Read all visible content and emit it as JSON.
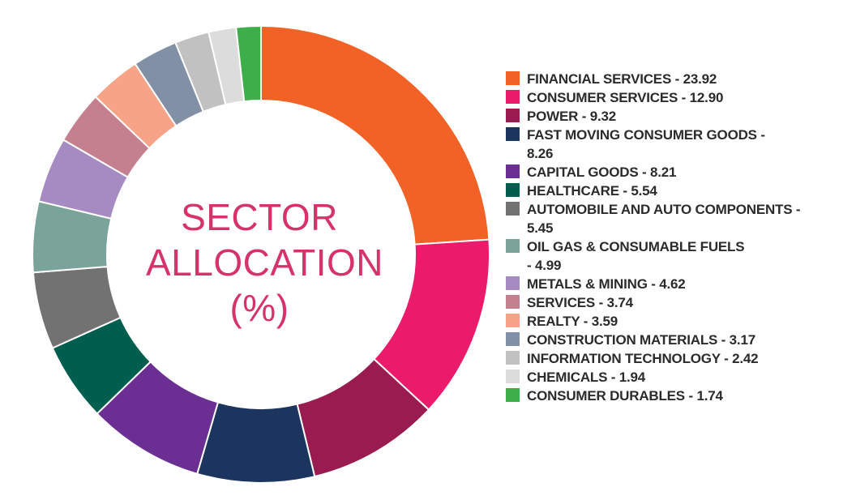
{
  "chart_data": {
    "type": "pie",
    "title_lines": [
      "SECTOR",
      "ALLOCATION",
      "(%)"
    ],
    "donut": true,
    "legend_position": "right",
    "slices": [
      {
        "label": "FINANCIAL SERVICES - 23.92",
        "value": 23.92,
        "color": "#f26125"
      },
      {
        "label": "CONSUMER SERVICES - 12.90",
        "value": 12.9,
        "color": "#ec1a6b"
      },
      {
        "label": "POWER - 9.32",
        "value": 9.32,
        "color": "#991b4f"
      },
      {
        "label": "FAST MOVING CONSUMER GOODS - \n8.26",
        "value": 8.26,
        "color": "#1c355e"
      },
      {
        "label": "CAPITAL GOODS - 8.21",
        "value": 8.21,
        "color": "#6b2f94"
      },
      {
        "label": "HEALTHCARE - 5.54",
        "value": 5.54,
        "color": "#005e4e"
      },
      {
        "label": "AUTOMOBILE AND AUTO COMPONENTS - \n5.45",
        "value": 5.45,
        "color": "#727272"
      },
      {
        "label": "OIL GAS & CONSUMABLE FUELS \n- 4.99",
        "value": 4.99,
        "color": "#7aa39a"
      },
      {
        "label": "METALS & MINING - 4.62",
        "value": 4.62,
        "color": "#a68bc3"
      },
      {
        "label": "SERVICES - 3.74",
        "value": 3.74,
        "color": "#c4808f"
      },
      {
        "label": "REALTY - 3.59",
        "value": 3.59,
        "color": "#f6a388"
      },
      {
        "label": "CONSTRUCTION MATERIALS - 3.17",
        "value": 3.17,
        "color": "#8290a6"
      },
      {
        "label": "INFORMATION TECHNOLOGY - 2.42",
        "value": 2.42,
        "color": "#c1c1c1"
      },
      {
        "label": "CHEMICALS - 1.94",
        "value": 1.94,
        "color": "#dcdcdc"
      },
      {
        "label": "CONSUMER DURABLES - 1.74",
        "value": 1.74,
        "color": "#3dae49"
      }
    ]
  }
}
